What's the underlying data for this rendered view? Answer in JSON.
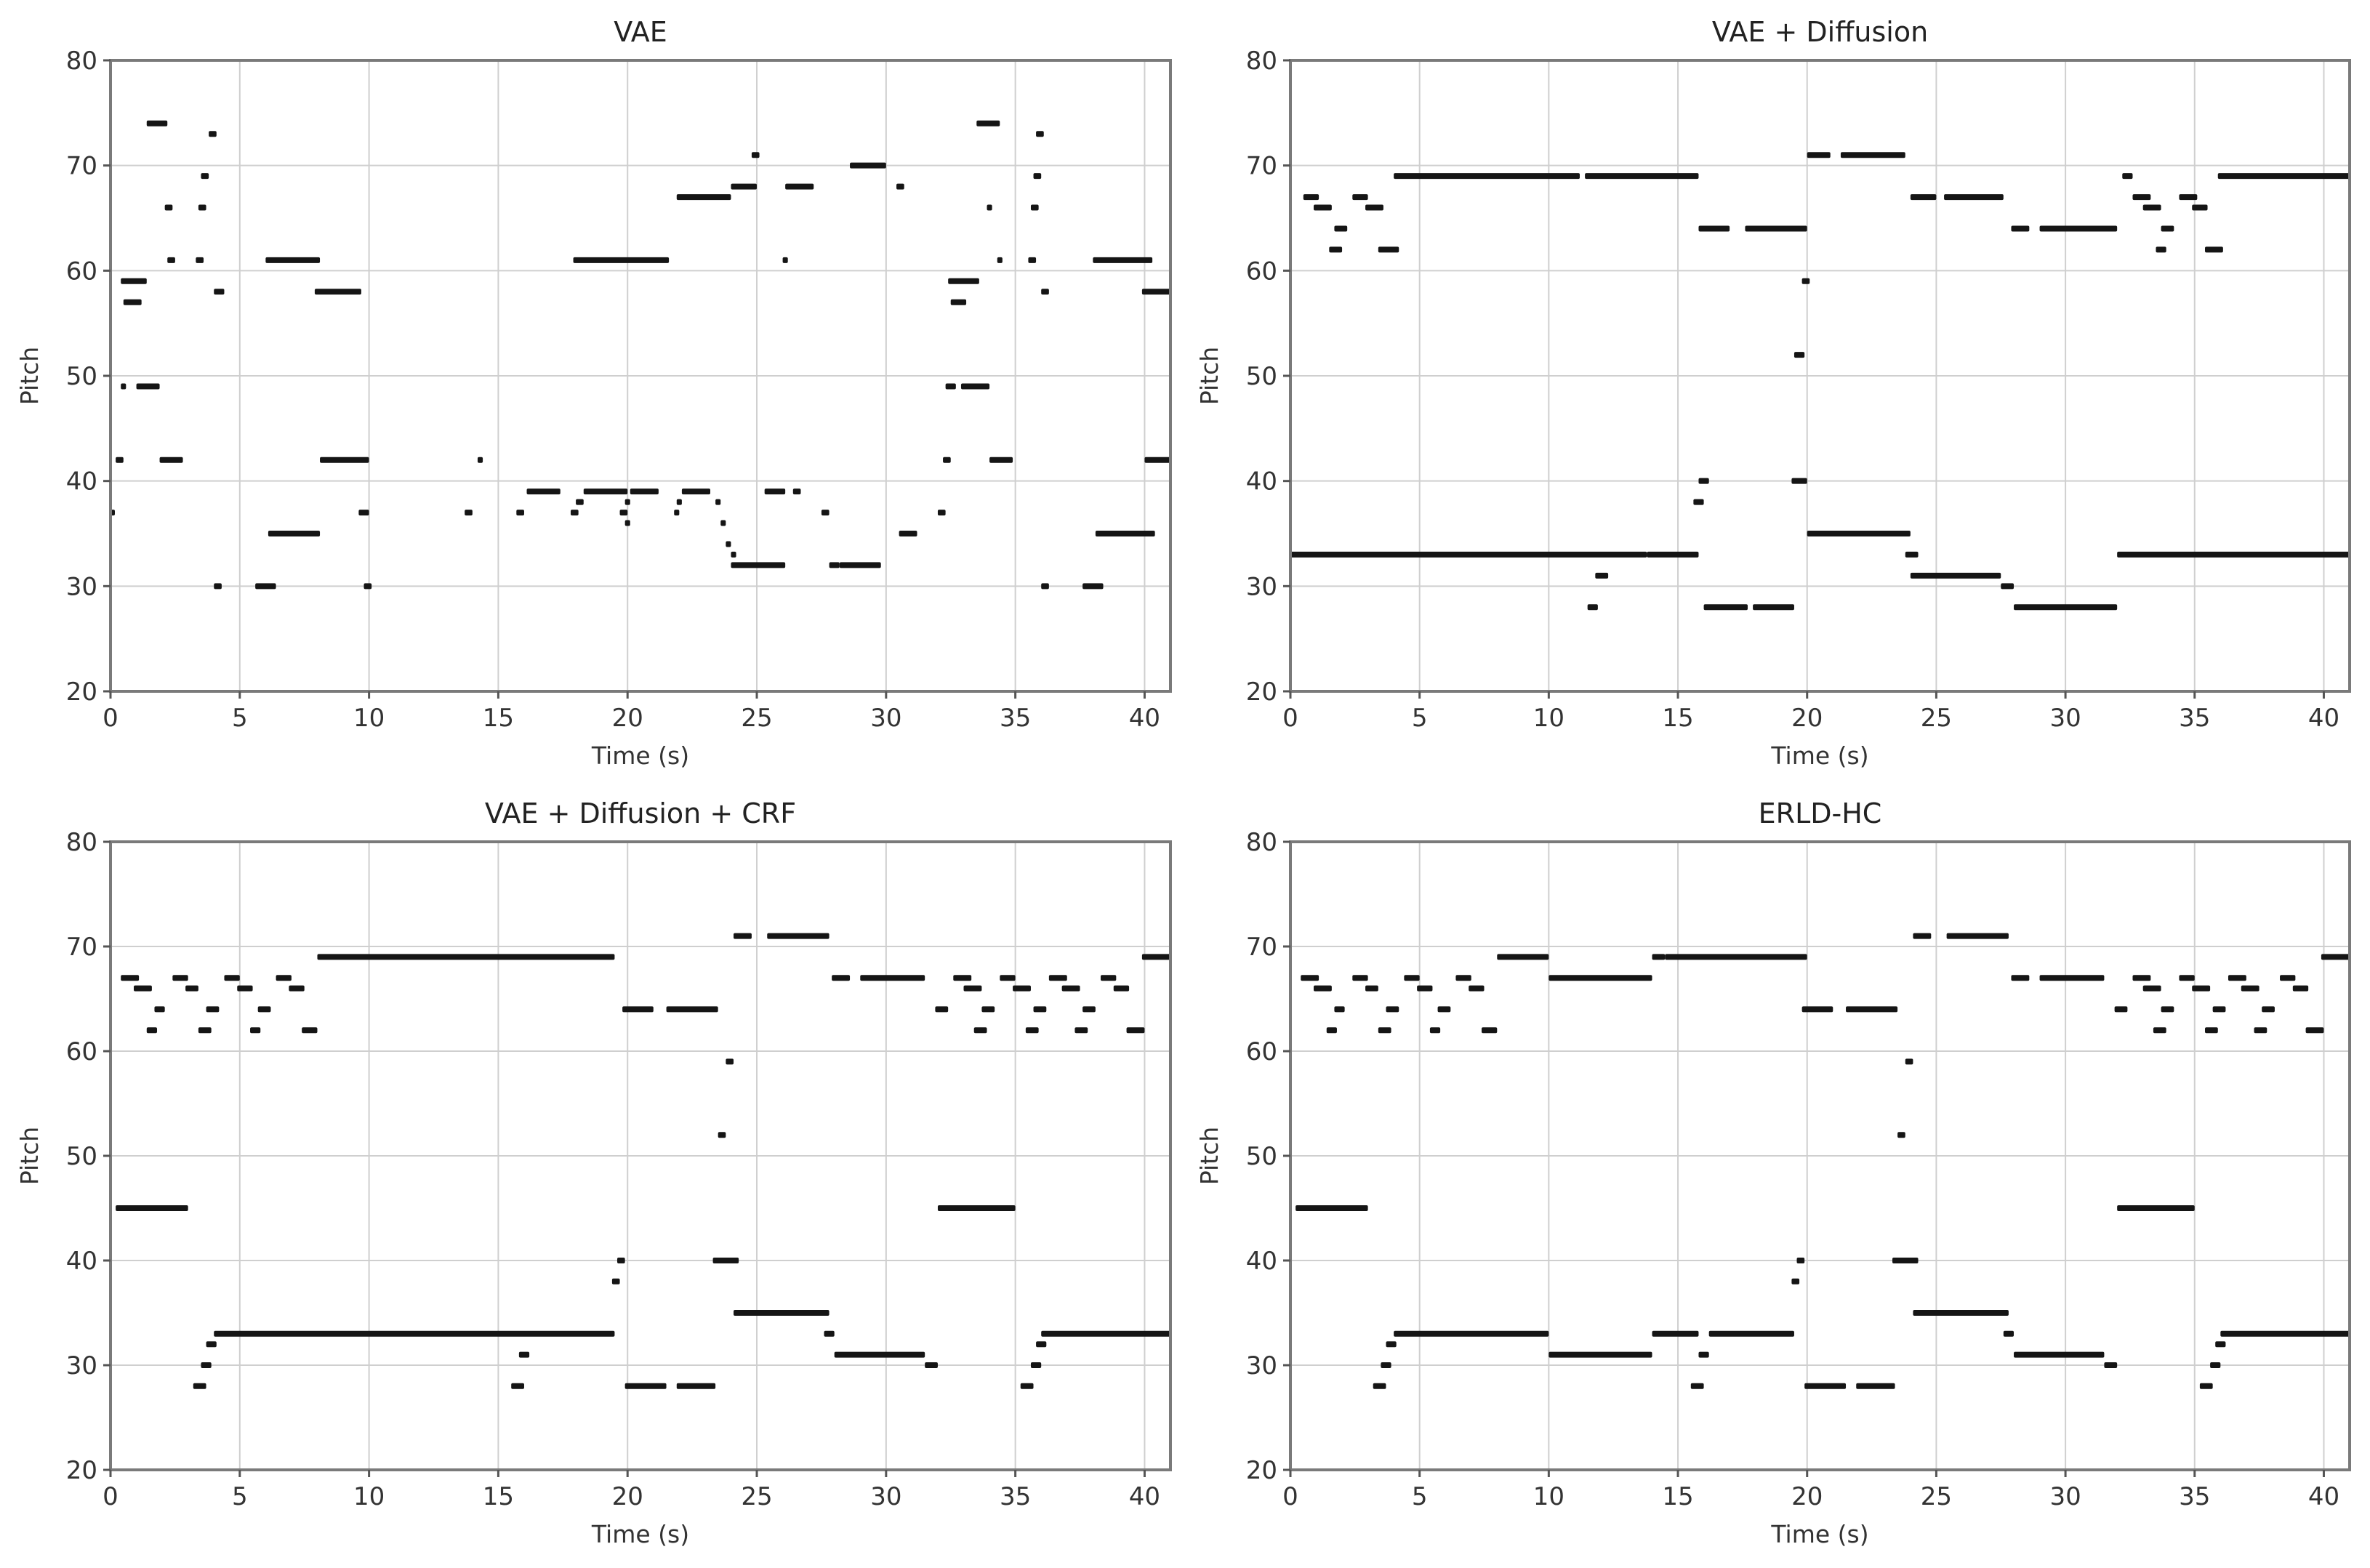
{
  "figure": {
    "charts": [
      {
        "key": "vae",
        "title": "VAE"
      },
      {
        "key": "vae_diff",
        "title": "VAE + Diffusion"
      },
      {
        "key": "vae_diff_crf",
        "title": "VAE + Diffusion + CRF"
      },
      {
        "key": "erld_hc",
        "title": "ERLD-HC"
      }
    ]
  },
  "chart_data": [
    {
      "type": "scatter",
      "title": "VAE",
      "xlabel": "Time (s)",
      "ylabel": "Pitch",
      "xlim": [
        0,
        41
      ],
      "ylim": [
        20,
        80
      ],
      "xticks": [
        0,
        5,
        10,
        15,
        20,
        25,
        30,
        35,
        40
      ],
      "yticks": [
        20,
        30,
        40,
        50,
        60,
        70,
        80
      ],
      "grid": true,
      "notes": [
        [
          0.0,
          0.1,
          37
        ],
        [
          0.2,
          0.5,
          42
        ],
        [
          0.4,
          0.6,
          49
        ],
        [
          0.4,
          1.4,
          59
        ],
        [
          0.5,
          1.2,
          57
        ],
        [
          1.0,
          1.9,
          49
        ],
        [
          1.4,
          2.2,
          74
        ],
        [
          1.9,
          2.8,
          42
        ],
        [
          2.1,
          2.4,
          66
        ],
        [
          2.2,
          2.5,
          61
        ],
        [
          3.3,
          3.6,
          61
        ],
        [
          3.4,
          3.7,
          66
        ],
        [
          3.5,
          3.8,
          69
        ],
        [
          3.8,
          4.1,
          73
        ],
        [
          4.0,
          4.3,
          30
        ],
        [
          4.0,
          4.4,
          58
        ],
        [
          5.6,
          6.4,
          30
        ],
        [
          6.0,
          8.1,
          61
        ],
        [
          6.1,
          8.1,
          35
        ],
        [
          7.9,
          9.7,
          58
        ],
        [
          8.1,
          10.0,
          42
        ],
        [
          9.6,
          10.0,
          37
        ],
        [
          9.8,
          10.1,
          30
        ],
        [
          13.7,
          14.0,
          37
        ],
        [
          14.2,
          14.4,
          42
        ],
        [
          15.7,
          16.0,
          37
        ],
        [
          16.1,
          17.4,
          39
        ],
        [
          17.8,
          18.1,
          37
        ],
        [
          17.9,
          21.6,
          61
        ],
        [
          18.0,
          18.3,
          38
        ],
        [
          18.3,
          20.0,
          39
        ],
        [
          19.7,
          20.0,
          37
        ],
        [
          19.9,
          20.1,
          36
        ],
        [
          19.9,
          20.1,
          38
        ],
        [
          20.1,
          21.2,
          39
        ],
        [
          21.8,
          22.0,
          37
        ],
        [
          21.9,
          22.1,
          38
        ],
        [
          22.1,
          23.2,
          39
        ],
        [
          21.9,
          24.0,
          67
        ],
        [
          23.4,
          23.6,
          38
        ],
        [
          23.6,
          23.8,
          36
        ],
        [
          23.8,
          24.0,
          34
        ],
        [
          24.0,
          24.2,
          33
        ],
        [
          24.0,
          26.1,
          32
        ],
        [
          24.0,
          25.0,
          68
        ],
        [
          24.8,
          25.1,
          71
        ],
        [
          25.3,
          26.1,
          39
        ],
        [
          26.0,
          26.2,
          61
        ],
        [
          26.1,
          27.2,
          68
        ],
        [
          26.4,
          26.7,
          39
        ],
        [
          27.5,
          27.8,
          37
        ],
        [
          27.8,
          28.2,
          32
        ],
        [
          28.2,
          29.8,
          32
        ],
        [
          28.6,
          30.0,
          70
        ],
        [
          30.4,
          30.7,
          68
        ],
        [
          30.5,
          31.2,
          35
        ],
        [
          32.0,
          32.3,
          37
        ],
        [
          32.2,
          32.5,
          42
        ],
        [
          32.3,
          32.7,
          49
        ],
        [
          32.4,
          33.6,
          59
        ],
        [
          32.5,
          33.1,
          57
        ],
        [
          32.9,
          34.0,
          49
        ],
        [
          33.5,
          34.4,
          74
        ],
        [
          33.9,
          34.1,
          66
        ],
        [
          34.0,
          34.9,
          42
        ],
        [
          34.3,
          34.5,
          61
        ],
        [
          35.5,
          35.8,
          61
        ],
        [
          35.6,
          35.9,
          66
        ],
        [
          35.7,
          36.0,
          69
        ],
        [
          35.8,
          36.1,
          73
        ],
        [
          36.0,
          36.3,
          30
        ],
        [
          36.0,
          36.3,
          58
        ],
        [
          37.6,
          38.4,
          30
        ],
        [
          38.0,
          40.3,
          61
        ],
        [
          38.1,
          40.4,
          35
        ],
        [
          39.9,
          41.0,
          58
        ],
        [
          40.0,
          41.0,
          42
        ]
      ]
    },
    {
      "type": "scatter",
      "title": "VAE + Diffusion",
      "xlabel": "Time (s)",
      "ylabel": "Pitch",
      "xlim": [
        0,
        41
      ],
      "ylim": [
        20,
        80
      ],
      "xticks": [
        0,
        5,
        10,
        15,
        20,
        25,
        30,
        35,
        40
      ],
      "yticks": [
        20,
        30,
        40,
        50,
        60,
        70,
        80
      ],
      "grid": true,
      "notes": [
        [
          0.0,
          13.8,
          33
        ],
        [
          13.8,
          15.8,
          33
        ],
        [
          0.5,
          1.1,
          67
        ],
        [
          0.9,
          1.6,
          66
        ],
        [
          1.5,
          2.0,
          62
        ],
        [
          1.7,
          2.2,
          64
        ],
        [
          2.4,
          3.0,
          67
        ],
        [
          2.9,
          3.6,
          66
        ],
        [
          3.4,
          4.2,
          62
        ],
        [
          4.0,
          11.2,
          69
        ],
        [
          11.4,
          15.8,
          69
        ],
        [
          11.5,
          11.9,
          28
        ],
        [
          11.8,
          12.3,
          31
        ],
        [
          15.6,
          16.0,
          38
        ],
        [
          15.8,
          16.2,
          40
        ],
        [
          15.8,
          17.0,
          64
        ],
        [
          16.0,
          17.7,
          28
        ],
        [
          17.6,
          20.0,
          64
        ],
        [
          17.9,
          19.5,
          28
        ],
        [
          19.4,
          20.0,
          40
        ],
        [
          19.5,
          19.9,
          52
        ],
        [
          19.8,
          20.1,
          59
        ],
        [
          20.0,
          20.9,
          71
        ],
        [
          20.0,
          24.0,
          35
        ],
        [
          21.3,
          23.8,
          71
        ],
        [
          23.8,
          24.3,
          33
        ],
        [
          24.0,
          25.0,
          67
        ],
        [
          24.0,
          27.5,
          31
        ],
        [
          25.3,
          27.6,
          67
        ],
        [
          27.5,
          28.0,
          30
        ],
        [
          27.9,
          28.6,
          64
        ],
        [
          28.0,
          32.0,
          28
        ],
        [
          29.0,
          32.0,
          64
        ],
        [
          32.0,
          41.0,
          33
        ],
        [
          32.2,
          32.6,
          69
        ],
        [
          32.6,
          33.3,
          67
        ],
        [
          33.0,
          33.7,
          66
        ],
        [
          33.5,
          33.9,
          62
        ],
        [
          33.7,
          34.2,
          64
        ],
        [
          34.4,
          35.1,
          67
        ],
        [
          34.9,
          35.5,
          66
        ],
        [
          35.4,
          36.1,
          62
        ],
        [
          35.9,
          41.0,
          69
        ]
      ]
    },
    {
      "type": "scatter",
      "title": "VAE + Diffusion + CRF",
      "xlabel": "Time (s)",
      "ylabel": "Pitch",
      "xlim": [
        0,
        41
      ],
      "ylim": [
        20,
        80
      ],
      "xticks": [
        0,
        5,
        10,
        15,
        20,
        25,
        30,
        35,
        40
      ],
      "yticks": [
        20,
        30,
        40,
        50,
        60,
        70,
        80
      ],
      "grid": true,
      "notes": [
        [
          0.2,
          3.0,
          45
        ],
        [
          0.4,
          1.1,
          67
        ],
        [
          0.9,
          1.6,
          66
        ],
        [
          1.4,
          1.8,
          62
        ],
        [
          1.7,
          2.1,
          64
        ],
        [
          2.4,
          3.0,
          67
        ],
        [
          2.9,
          3.4,
          66
        ],
        [
          3.2,
          3.7,
          28
        ],
        [
          3.4,
          3.9,
          62
        ],
        [
          3.5,
          3.9,
          30
        ],
        [
          3.7,
          4.2,
          64
        ],
        [
          3.7,
          4.1,
          32
        ],
        [
          4.0,
          19.5,
          33
        ],
        [
          4.4,
          5.0,
          67
        ],
        [
          4.9,
          5.5,
          66
        ],
        [
          5.4,
          5.8,
          62
        ],
        [
          5.7,
          6.2,
          64
        ],
        [
          6.4,
          7.0,
          67
        ],
        [
          6.9,
          7.5,
          66
        ],
        [
          7.4,
          8.0,
          62
        ],
        [
          8.0,
          19.5,
          69
        ],
        [
          15.5,
          16.0,
          28
        ],
        [
          15.8,
          16.2,
          31
        ],
        [
          19.4,
          19.7,
          38
        ],
        [
          19.6,
          19.9,
          40
        ],
        [
          19.8,
          21.0,
          64
        ],
        [
          19.9,
          21.5,
          28
        ],
        [
          21.5,
          23.5,
          64
        ],
        [
          21.9,
          23.4,
          28
        ],
        [
          23.3,
          24.3,
          40
        ],
        [
          23.5,
          23.8,
          52
        ],
        [
          23.8,
          24.1,
          59
        ],
        [
          24.1,
          24.8,
          71
        ],
        [
          24.1,
          27.8,
          35
        ],
        [
          25.4,
          27.8,
          71
        ],
        [
          27.6,
          28.0,
          33
        ],
        [
          27.9,
          28.6,
          67
        ],
        [
          28.0,
          31.5,
          31
        ],
        [
          29.0,
          31.5,
          67
        ],
        [
          31.5,
          32.0,
          30
        ],
        [
          31.9,
          32.4,
          64
        ],
        [
          32.0,
          35.0,
          45
        ],
        [
          32.6,
          33.3,
          67
        ],
        [
          33.0,
          33.7,
          66
        ],
        [
          33.4,
          33.9,
          62
        ],
        [
          33.7,
          34.2,
          64
        ],
        [
          34.4,
          35.0,
          67
        ],
        [
          34.9,
          35.6,
          66
        ],
        [
          35.2,
          35.7,
          28
        ],
        [
          35.4,
          35.9,
          62
        ],
        [
          35.6,
          36.0,
          30
        ],
        [
          35.7,
          36.2,
          64
        ],
        [
          35.8,
          36.2,
          32
        ],
        [
          36.0,
          41.0,
          33
        ],
        [
          36.3,
          37.0,
          67
        ],
        [
          36.8,
          37.5,
          66
        ],
        [
          37.3,
          37.8,
          62
        ],
        [
          37.6,
          38.1,
          64
        ],
        [
          38.3,
          38.9,
          67
        ],
        [
          38.8,
          39.4,
          66
        ],
        [
          39.3,
          40.0,
          62
        ],
        [
          39.9,
          41.0,
          69
        ]
      ]
    },
    {
      "type": "scatter",
      "title": "ERLD-HC",
      "xlabel": "Time (s)",
      "ylabel": "Pitch",
      "xlim": [
        0,
        41
      ],
      "ylim": [
        20,
        80
      ],
      "xticks": [
        0,
        5,
        10,
        15,
        20,
        25,
        30,
        35,
        40
      ],
      "yticks": [
        20,
        30,
        40,
        50,
        60,
        70,
        80
      ],
      "grid": true,
      "notes": [
        [
          0.2,
          3.0,
          45
        ],
        [
          0.4,
          1.1,
          67
        ],
        [
          0.9,
          1.6,
          66
        ],
        [
          1.4,
          1.8,
          62
        ],
        [
          1.7,
          2.1,
          64
        ],
        [
          2.4,
          3.0,
          67
        ],
        [
          2.9,
          3.4,
          66
        ],
        [
          3.2,
          3.7,
          28
        ],
        [
          3.4,
          3.9,
          62
        ],
        [
          3.5,
          3.9,
          30
        ],
        [
          3.7,
          4.2,
          64
        ],
        [
          3.7,
          4.1,
          32
        ],
        [
          4.0,
          10.0,
          33
        ],
        [
          4.4,
          5.0,
          67
        ],
        [
          4.9,
          5.5,
          66
        ],
        [
          5.4,
          5.8,
          62
        ],
        [
          5.7,
          6.2,
          64
        ],
        [
          6.4,
          7.0,
          67
        ],
        [
          6.9,
          7.5,
          66
        ],
        [
          7.4,
          8.0,
          62
        ],
        [
          8.0,
          10.0,
          69
        ],
        [
          10.0,
          14.0,
          67
        ],
        [
          10.0,
          14.0,
          31
        ],
        [
          14.0,
          14.5,
          69
        ],
        [
          14.0,
          15.8,
          33
        ],
        [
          14.5,
          20.0,
          69
        ],
        [
          15.5,
          16.0,
          28
        ],
        [
          15.8,
          16.2,
          31
        ],
        [
          16.2,
          19.5,
          33
        ],
        [
          19.4,
          19.7,
          38
        ],
        [
          19.6,
          19.9,
          40
        ],
        [
          19.8,
          21.0,
          64
        ],
        [
          19.9,
          21.5,
          28
        ],
        [
          21.5,
          23.5,
          64
        ],
        [
          21.9,
          23.4,
          28
        ],
        [
          23.3,
          24.3,
          40
        ],
        [
          23.5,
          23.8,
          52
        ],
        [
          23.8,
          24.1,
          59
        ],
        [
          24.1,
          24.8,
          71
        ],
        [
          24.1,
          27.8,
          35
        ],
        [
          25.4,
          27.8,
          71
        ],
        [
          27.6,
          28.0,
          33
        ],
        [
          27.9,
          28.6,
          67
        ],
        [
          28.0,
          31.5,
          31
        ],
        [
          29.0,
          31.5,
          67
        ],
        [
          31.5,
          32.0,
          30
        ],
        [
          31.9,
          32.4,
          64
        ],
        [
          32.0,
          35.0,
          45
        ],
        [
          32.6,
          33.3,
          67
        ],
        [
          33.0,
          33.7,
          66
        ],
        [
          33.4,
          33.9,
          62
        ],
        [
          33.7,
          34.2,
          64
        ],
        [
          34.4,
          35.0,
          67
        ],
        [
          34.9,
          35.6,
          66
        ],
        [
          35.2,
          35.7,
          28
        ],
        [
          35.4,
          35.9,
          62
        ],
        [
          35.6,
          36.0,
          30
        ],
        [
          35.7,
          36.2,
          64
        ],
        [
          35.8,
          36.2,
          32
        ],
        [
          36.0,
          41.0,
          33
        ],
        [
          36.3,
          37.0,
          67
        ],
        [
          36.8,
          37.5,
          66
        ],
        [
          37.3,
          37.8,
          62
        ],
        [
          37.6,
          38.1,
          64
        ],
        [
          38.3,
          38.9,
          67
        ],
        [
          38.8,
          39.4,
          66
        ],
        [
          39.3,
          40.0,
          62
        ],
        [
          39.9,
          41.0,
          69
        ]
      ]
    }
  ]
}
